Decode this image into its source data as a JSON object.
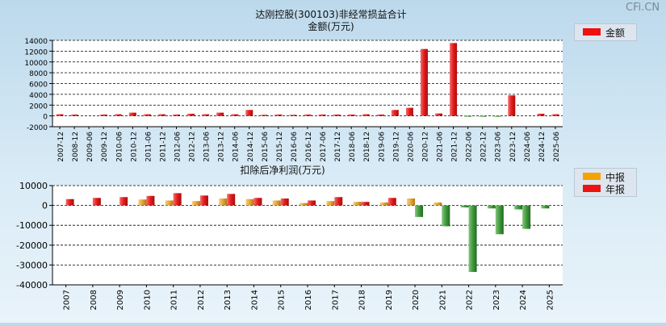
{
  "watermark": "CFi.CN",
  "chart_data": [
    {
      "type": "bar",
      "title": "达刚控股(300103)非经常损益合计",
      "subtitle": "金额(万元)",
      "legend": [
        {
          "name": "金额",
          "color": "#ee1111"
        }
      ],
      "ylim": [
        -2000,
        14000
      ],
      "yticks": [
        -2000,
        0,
        2000,
        4000,
        6000,
        8000,
        10000,
        12000,
        14000
      ],
      "grid": true,
      "legend_position": "top-right",
      "categories": [
        "2007-12",
        "2008-12",
        "2009-06",
        "2009-12",
        "2010-06",
        "2010-12",
        "2011-06",
        "2011-12",
        "2012-06",
        "2012-12",
        "2013-06",
        "2013-12",
        "2014-06",
        "2014-12",
        "2015-06",
        "2015-12",
        "2016-06",
        "2016-12",
        "2017-06",
        "2017-12",
        "2018-06",
        "2018-12",
        "2019-06",
        "2019-12",
        "2020-06",
        "2020-12",
        "2021-06",
        "2021-12",
        "2022-06",
        "2022-12",
        "2023-06",
        "2023-12",
        "2024-06",
        "2024-12",
        "2025-06"
      ],
      "series": [
        {
          "name": "金额",
          "values": [
            300,
            250,
            0,
            250,
            300,
            600,
            300,
            300,
            250,
            400,
            300,
            600,
            300,
            1100,
            200,
            250,
            200,
            250,
            250,
            250,
            250,
            300,
            250,
            1100,
            1500,
            12400,
            450,
            13500,
            -150,
            -150,
            -150,
            3800,
            0,
            400,
            300
          ]
        }
      ]
    },
    {
      "type": "bar",
      "title": "扣除后净利润(万元)",
      "legend": [
        {
          "name": "中报",
          "color": "#f5a300"
        },
        {
          "name": "年报",
          "color": "#ee1111"
        }
      ],
      "ylim": [
        -40000,
        10000
      ],
      "yticks": [
        -40000,
        -30000,
        -20000,
        -10000,
        0,
        10000
      ],
      "grid": true,
      "legend_position": "top-right",
      "categories": [
        "2007",
        "2008",
        "2009",
        "2010",
        "2011",
        "2012",
        "2013",
        "2014",
        "2015",
        "2016",
        "2017",
        "2018",
        "2019",
        "2020",
        "2021",
        "2022",
        "2023",
        "2024",
        "2025"
      ],
      "series": [
        {
          "name": "中报",
          "values": [
            null,
            null,
            null,
            3000,
            2500,
            2200,
            3500,
            3200,
            2500,
            1200,
            2200,
            1800,
            1500,
            3500,
            1500,
            -1000,
            -1500,
            -2000,
            -1500
          ]
        },
        {
          "name": "年报",
          "values": [
            3200,
            3800,
            4200,
            4800,
            6200,
            5000,
            5800,
            3800,
            3500,
            2500,
            4200,
            1800,
            3800,
            -5800,
            -10500,
            -33500,
            -14500,
            -11800,
            null
          ]
        }
      ]
    }
  ]
}
